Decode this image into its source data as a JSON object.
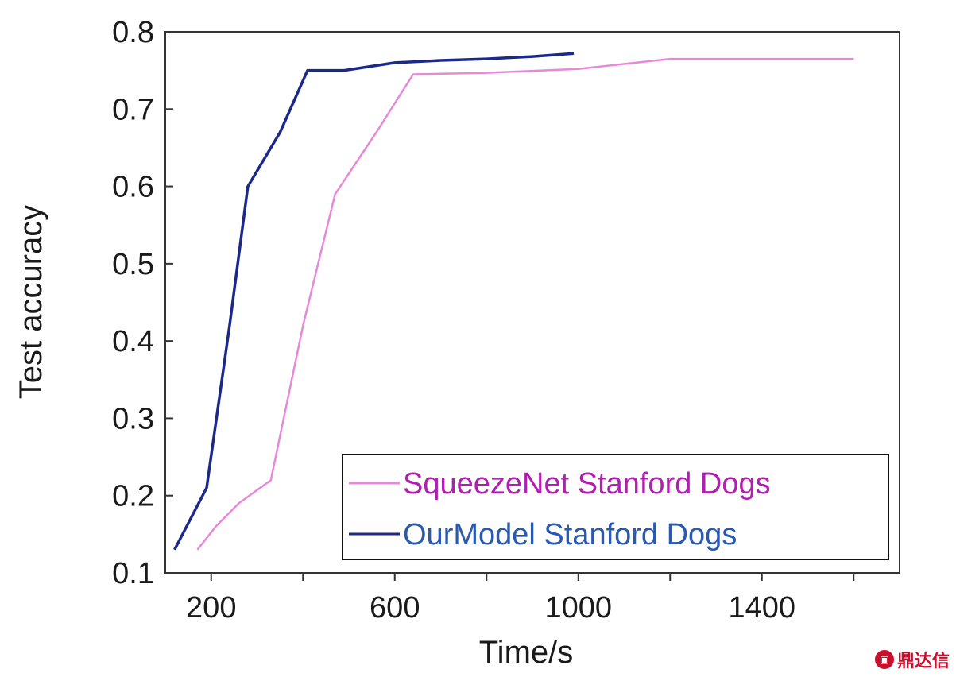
{
  "chart_data": {
    "type": "line",
    "title": "",
    "xlabel": "Time/s",
    "ylabel": "Test accuracy",
    "xlim": [
      100,
      1700
    ],
    "ylim": [
      0.1,
      0.8
    ],
    "xticks": [
      200,
      600,
      1000,
      1400
    ],
    "xticks_minor": [
      400,
      800,
      1200,
      1600
    ],
    "yticks": [
      0.1,
      0.2,
      0.3,
      0.4,
      0.5,
      0.6,
      0.7,
      0.8
    ],
    "ytick_labels": [
      "0.1",
      "0.2",
      "0.3",
      "0.4",
      "0.5",
      "0.6",
      "0.7",
      "0.8"
    ],
    "xtick_labels": [
      "200",
      "600",
      "1000",
      "1400"
    ],
    "grid": false,
    "legend_position": "bottom-right",
    "series": [
      {
        "name": "SqueezeNet Stanford Dogs",
        "color": "#e888d8",
        "legend_text_color": "#b01fb0",
        "x": [
          170,
          210,
          260,
          330,
          400,
          470,
          560,
          640,
          800,
          1000,
          1200,
          1400,
          1600
        ],
        "y": [
          0.13,
          0.16,
          0.19,
          0.22,
          0.42,
          0.59,
          0.67,
          0.745,
          0.747,
          0.752,
          0.765,
          0.765,
          0.765
        ]
      },
      {
        "name": "OurModel Stanford Dogs",
        "color": "#1b2a8a",
        "legend_text_color": "#2a5ab0",
        "x": [
          120,
          190,
          240,
          280,
          300,
          350,
          410,
          490,
          600,
          700,
          800,
          900,
          990
        ],
        "y": [
          0.13,
          0.21,
          0.42,
          0.6,
          0.62,
          0.67,
          0.75,
          0.75,
          0.76,
          0.763,
          0.765,
          0.768,
          0.772
        ]
      }
    ]
  },
  "watermark": {
    "icon": "logo-icon",
    "text": "鼎达信"
  }
}
